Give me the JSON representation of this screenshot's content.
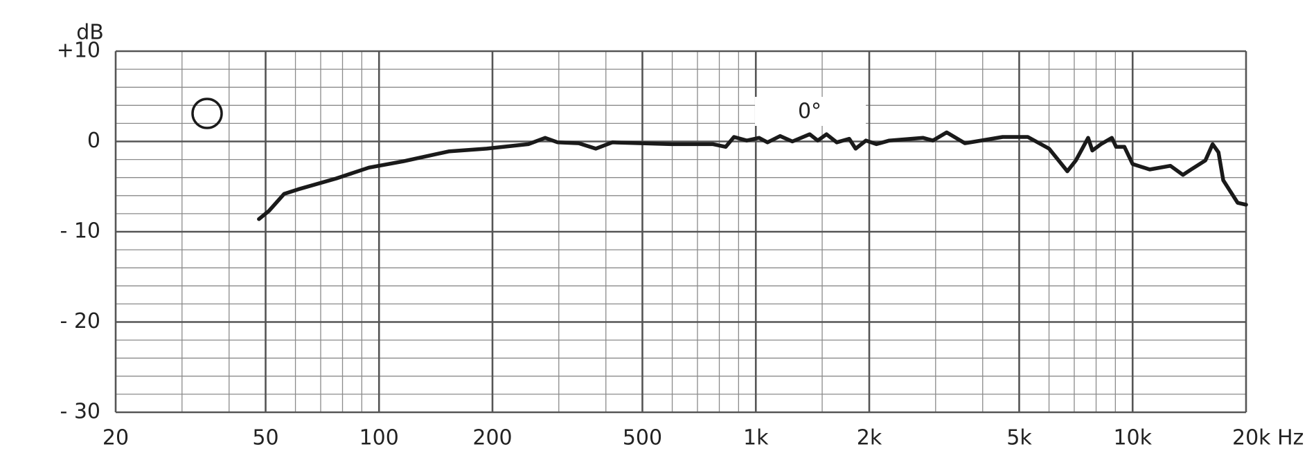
{
  "chart_data": {
    "type": "line",
    "y_axis_label": "dB",
    "annotation": "0°",
    "x_log": true,
    "grid": true,
    "xlim": [
      20,
      20000
    ],
    "xticks": [
      20,
      50,
      100,
      200,
      500,
      {
        "value": 1000,
        "label": "1k"
      },
      {
        "value": 2000,
        "label": "2k"
      },
      {
        "value": 5000,
        "label": "5k"
      },
      {
        "value": 10000,
        "label": "10k"
      },
      {
        "value": 20000,
        "label": "20k Hz"
      }
    ],
    "x_minor_grid": [
      30,
      40,
      60,
      70,
      80,
      90,
      300,
      400,
      600,
      700,
      800,
      900,
      1500,
      3000,
      4000,
      6000,
      7000,
      8000,
      9000
    ],
    "ylim": [
      -30,
      10
    ],
    "yticks": [
      {
        "value": 10,
        "label": "+10"
      },
      0,
      {
        "value": -10,
        "label": "- 10"
      },
      {
        "value": -20,
        "label": "- 20"
      },
      {
        "value": -30,
        "label": "- 30"
      }
    ],
    "y_minor_grid": [
      8,
      6,
      4,
      2,
      -2,
      -4,
      -6,
      -8,
      -12,
      -14,
      -16,
      -18,
      -22,
      -24,
      -26,
      -28
    ],
    "x": [
      48,
      51,
      56,
      61,
      77,
      94,
      116,
      153,
      193,
      249,
      276,
      298,
      339,
      376,
      416,
      596,
      770,
      832,
      875,
      946,
      1020,
      1074,
      1160,
      1250,
      1390,
      1460,
      1540,
      1640,
      1770,
      1840,
      1960,
      2090,
      2260,
      2780,
      2950,
      3210,
      3590,
      4520,
      5270,
      6000,
      6710,
      7070,
      7620,
      7820,
      8240,
      8810,
      9040,
      9510,
      10000,
      11100,
      12600,
      13600,
      14300,
      15600,
      16300,
      16900,
      17400,
      19000,
      20000
    ],
    "series": [
      {
        "color": "#1a1a1a",
        "values": [
          -8.6,
          -7.7,
          -5.8,
          -5.3,
          -4.1,
          -2.9,
          -2.2,
          -1.1,
          -0.8,
          -0.3,
          0.4,
          -0.1,
          -0.2,
          -0.8,
          -0.1,
          -0.3,
          -0.3,
          -0.6,
          0.5,
          0.1,
          0.4,
          -0.1,
          0.6,
          0,
          0.8,
          0.1,
          0.8,
          -0.1,
          0.3,
          -0.8,
          0.1,
          -0.3,
          0.1,
          0.4,
          0.1,
          1.0,
          -0.2,
          0.5,
          0.5,
          -0.8,
          -3.3,
          -2.1,
          0.4,
          -1.0,
          -0.3,
          0.4,
          -0.6,
          -0.6,
          -2.5,
          -3.1,
          -2.7,
          -3.7,
          -3.1,
          -2.1,
          -0.3,
          -1.2,
          -4.3,
          -6.8,
          -7.0
        ]
      }
    ]
  }
}
